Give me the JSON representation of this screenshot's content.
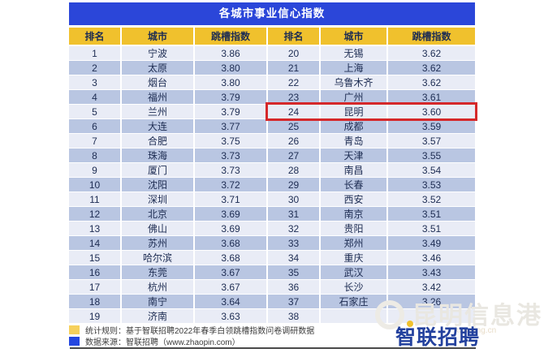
{
  "table": {
    "title": "各城市事业信心指数",
    "columns": [
      "排名",
      "城市",
      "跳槽指数",
      "排名",
      "城市",
      "跳槽指数"
    ],
    "left_rows": [
      {
        "rank": "1",
        "city": "宁波",
        "index": "3.86"
      },
      {
        "rank": "2",
        "city": "太原",
        "index": "3.80"
      },
      {
        "rank": "3",
        "city": "烟台",
        "index": "3.80"
      },
      {
        "rank": "4",
        "city": "福州",
        "index": "3.79"
      },
      {
        "rank": "5",
        "city": "兰州",
        "index": "3.79"
      },
      {
        "rank": "6",
        "city": "大连",
        "index": "3.77"
      },
      {
        "rank": "7",
        "city": "合肥",
        "index": "3.75"
      },
      {
        "rank": "8",
        "city": "珠海",
        "index": "3.73"
      },
      {
        "rank": "9",
        "city": "厦门",
        "index": "3.73"
      },
      {
        "rank": "10",
        "city": "沈阳",
        "index": "3.72"
      },
      {
        "rank": "11",
        "city": "深圳",
        "index": "3.71"
      },
      {
        "rank": "12",
        "city": "北京",
        "index": "3.69"
      },
      {
        "rank": "13",
        "city": "佛山",
        "index": "3.69"
      },
      {
        "rank": "14",
        "city": "苏州",
        "index": "3.68"
      },
      {
        "rank": "15",
        "city": "哈尔滨",
        "index": "3.68"
      },
      {
        "rank": "16",
        "city": "东莞",
        "index": "3.67"
      },
      {
        "rank": "17",
        "city": "杭州",
        "index": "3.67"
      },
      {
        "rank": "18",
        "city": "南宁",
        "index": "3.64"
      },
      {
        "rank": "19",
        "city": "济南",
        "index": "3.63"
      }
    ],
    "right_rows": [
      {
        "rank": "20",
        "city": "无锡",
        "index": "3.62"
      },
      {
        "rank": "21",
        "city": "上海",
        "index": "3.62"
      },
      {
        "rank": "22",
        "city": "乌鲁木齐",
        "index": "3.62"
      },
      {
        "rank": "23",
        "city": "广州",
        "index": "3.61"
      },
      {
        "rank": "24",
        "city": "昆明",
        "index": "3.60"
      },
      {
        "rank": "25",
        "city": "成都",
        "index": "3.59"
      },
      {
        "rank": "26",
        "city": "青岛",
        "index": "3.57"
      },
      {
        "rank": "27",
        "city": "天津",
        "index": "3.55"
      },
      {
        "rank": "28",
        "city": "南昌",
        "index": "3.54"
      },
      {
        "rank": "29",
        "city": "长春",
        "index": "3.53"
      },
      {
        "rank": "30",
        "city": "西安",
        "index": "3.52"
      },
      {
        "rank": "31",
        "city": "南京",
        "index": "3.51"
      },
      {
        "rank": "32",
        "city": "贵阳",
        "index": "3.51"
      },
      {
        "rank": "33",
        "city": "郑州",
        "index": "3.49"
      },
      {
        "rank": "34",
        "city": "重庆",
        "index": "3.46"
      },
      {
        "rank": "35",
        "city": "武汉",
        "index": "3.43"
      },
      {
        "rank": "36",
        "city": "长沙",
        "index": "3.42"
      },
      {
        "rank": "37",
        "city": "石家庄",
        "index": "3.26"
      },
      {
        "rank": "38",
        "city": "",
        "index": ""
      }
    ],
    "highlighted_rank": "24"
  },
  "chart_data": {
    "type": "table",
    "title": "各城市事业信心指数",
    "columns": [
      "排名",
      "城市",
      "跳槽指数"
    ],
    "rows": [
      [
        "1",
        "宁波",
        "3.86"
      ],
      [
        "2",
        "太原",
        "3.80"
      ],
      [
        "3",
        "烟台",
        "3.80"
      ],
      [
        "4",
        "福州",
        "3.79"
      ],
      [
        "5",
        "兰州",
        "3.79"
      ],
      [
        "6",
        "大连",
        "3.77"
      ],
      [
        "7",
        "合肥",
        "3.75"
      ],
      [
        "8",
        "珠海",
        "3.73"
      ],
      [
        "9",
        "厦门",
        "3.73"
      ],
      [
        "10",
        "沈阳",
        "3.72"
      ],
      [
        "11",
        "深圳",
        "3.71"
      ],
      [
        "12",
        "北京",
        "3.69"
      ],
      [
        "13",
        "佛山",
        "3.69"
      ],
      [
        "14",
        "苏州",
        "3.68"
      ],
      [
        "15",
        "哈尔滨",
        "3.68"
      ],
      [
        "16",
        "东莞",
        "3.67"
      ],
      [
        "17",
        "杭州",
        "3.67"
      ],
      [
        "18",
        "南宁",
        "3.64"
      ],
      [
        "19",
        "济南",
        "3.63"
      ],
      [
        "20",
        "无锡",
        "3.62"
      ],
      [
        "21",
        "上海",
        "3.62"
      ],
      [
        "22",
        "乌鲁木齐",
        "3.62"
      ],
      [
        "23",
        "广州",
        "3.61"
      ],
      [
        "24",
        "昆明",
        "3.60"
      ],
      [
        "25",
        "成都",
        "3.59"
      ],
      [
        "26",
        "青岛",
        "3.57"
      ],
      [
        "27",
        "天津",
        "3.55"
      ],
      [
        "28",
        "南昌",
        "3.54"
      ],
      [
        "29",
        "长春",
        "3.53"
      ],
      [
        "30",
        "西安",
        "3.52"
      ],
      [
        "31",
        "南京",
        "3.51"
      ],
      [
        "32",
        "贵阳",
        "3.51"
      ],
      [
        "33",
        "郑州",
        "3.49"
      ],
      [
        "34",
        "重庆",
        "3.46"
      ],
      [
        "35",
        "武汉",
        "3.43"
      ],
      [
        "36",
        "长沙",
        "3.42"
      ],
      [
        "37",
        "石家庄",
        "3.26"
      ],
      [
        "38",
        "",
        ""
      ]
    ],
    "highlighted_row": {
      "rank": "24",
      "city": "昆明",
      "index": "3.60"
    },
    "layout": "two side-by-side halves: ranks 1-19 left, 20-38 right"
  },
  "footer": {
    "stat_rule": "统计规则：基于智联招聘2022年春季白领跳槽指数问卷调研数据",
    "data_source": "数据来源：智联招聘（www.zhaopin.com）"
  },
  "watermark": {
    "site_name": "昆明信息港",
    "site_url": "kunming.cn",
    "logo_text": "智联招聘"
  },
  "colors": {
    "title_bar_blue": "#2b46d9",
    "header_yellow": "#f0c12d",
    "row_light": "#e9ecf6",
    "row_dark": "#b9c6e2",
    "highlight_red": "#d5282a",
    "logo_blue": "#23419e",
    "text_navy": "#1d2c52"
  }
}
